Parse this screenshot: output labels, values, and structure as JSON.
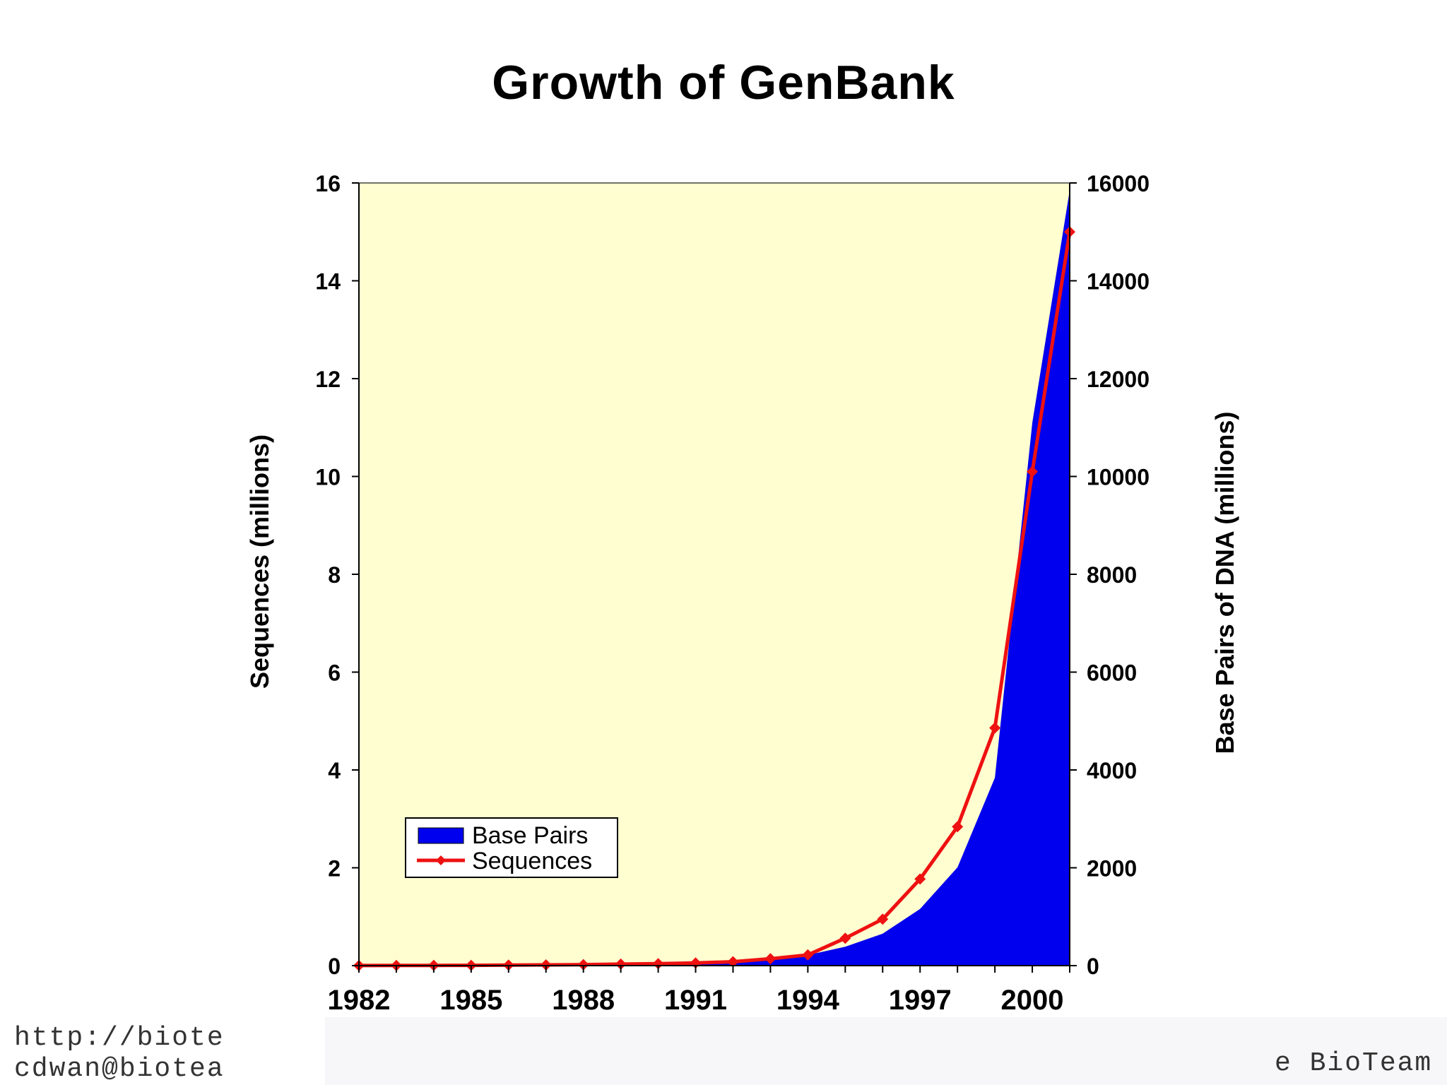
{
  "slide": {
    "title": "Growth of GenBank",
    "footer_left_line1": "http://biote",
    "footer_left_line2": "cdwan@biotea",
    "footer_right": "e BioTeam"
  },
  "colors": {
    "plot_background": "#fffed0",
    "base_pairs_fill": "#0000ee",
    "sequences_line": "#ee1111",
    "axis": "#000000"
  },
  "chart_data": {
    "type": "area",
    "title": "Growth of GenBank",
    "xlabel": "",
    "ylabel_left": "Sequences (millions)",
    "ylabel_right": "Base Pairs of DNA (millions)",
    "x": [
      1982,
      1983,
      1984,
      1985,
      1986,
      1987,
      1988,
      1989,
      1990,
      1991,
      1992,
      1993,
      1994,
      1995,
      1996,
      1997,
      1998,
      1999,
      2000,
      2001
    ],
    "x_tick_labels": [
      "1982",
      "1985",
      "1988",
      "1991",
      "1994",
      "1997",
      "2000"
    ],
    "xlim": [
      1982,
      2001
    ],
    "ylim_left": [
      0,
      16
    ],
    "ylim_right": [
      0,
      16000
    ],
    "y_left_ticks": [
      "0",
      "2",
      "4",
      "6",
      "8",
      "10",
      "12",
      "14",
      "16"
    ],
    "y_right_ticks": [
      "0",
      "2000",
      "4000",
      "6000",
      "8000",
      "10000",
      "12000",
      "14000",
      "16000"
    ],
    "grid": false,
    "legend_position": "bottom-left",
    "series": [
      {
        "name": "Base Pairs",
        "kind": "area",
        "axis": "right",
        "values": [
          1,
          2,
          4,
          5,
          9,
          16,
          25,
          35,
          49,
          71,
          101,
          157,
          217,
          385,
          652,
          1160,
          2009,
          3841,
          11101,
          15850
        ]
      },
      {
        "name": "Sequences",
        "kind": "line",
        "axis": "left",
        "values": [
          0.001,
          0.003,
          0.005,
          0.006,
          0.01,
          0.015,
          0.02,
          0.03,
          0.04,
          0.055,
          0.08,
          0.14,
          0.22,
          0.56,
          0.95,
          1.77,
          2.84,
          4.86,
          10.1,
          15.0
        ]
      }
    ]
  }
}
